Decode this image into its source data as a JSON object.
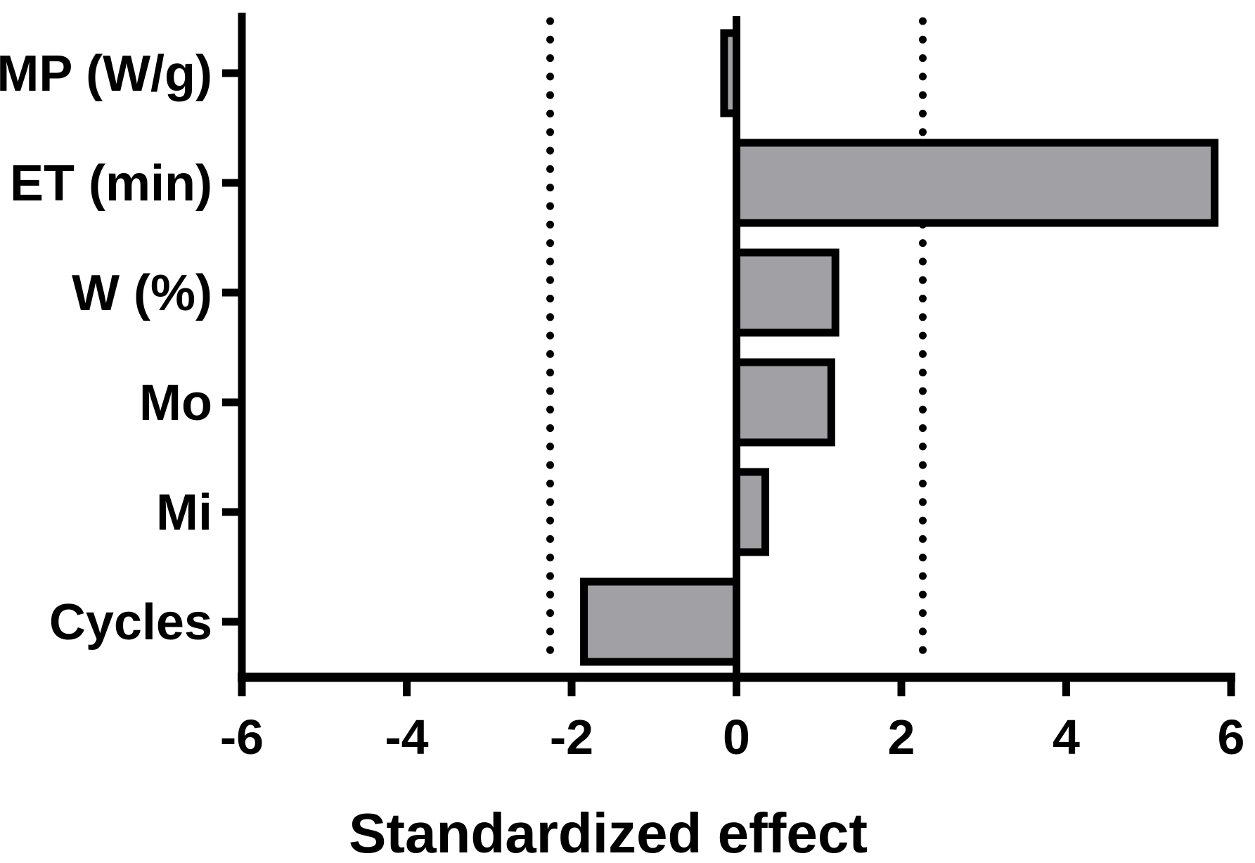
{
  "figure": {
    "background": "#ffffff",
    "axis_color": "#000000"
  },
  "chart_data": {
    "type": "bar",
    "orientation": "horizontal",
    "title": "",
    "xlabel": "Standardized effect",
    "ylabel": "",
    "categories": [
      "MP (W/g)",
      "ET (min)",
      "W (%)",
      "Mo",
      "Mi",
      "Cycles"
    ],
    "values": [
      -0.15,
      5.8,
      1.2,
      1.15,
      0.35,
      -1.85
    ],
    "xlim": [
      -6,
      6
    ],
    "xticks": [
      -6,
      -4,
      -2,
      0,
      2,
      4,
      6
    ],
    "xtick_labels": [
      "-6",
      "-4",
      "-2",
      "0",
      "2",
      "4",
      "6"
    ],
    "reference_lines": {
      "style": "dotted",
      "values": [
        -2.26,
        2.26
      ],
      "color": "#000000"
    },
    "bar_fill": "#a1a0a5",
    "bar_border": "#000000",
    "zero_line": true,
    "grid": false,
    "legend": false
  }
}
